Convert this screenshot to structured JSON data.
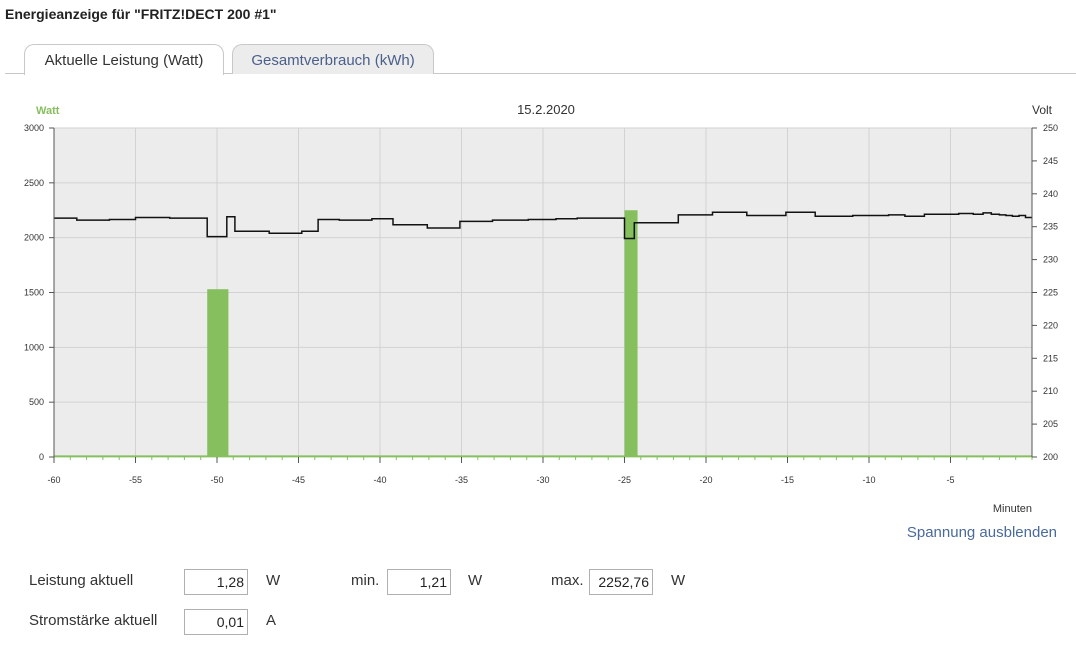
{
  "page": {
    "title": "Energieanzeige für \"FRITZ!DECT 200 #1\""
  },
  "tabs": [
    {
      "label": "Aktuelle Leistung (Watt)",
      "active": true
    },
    {
      "label": "Gesamtverbrauch (kWh)",
      "active": false
    }
  ],
  "colors": {
    "power": "#86bf5e",
    "voltage": "#111111",
    "plot_background": "#ececec",
    "link": "#4a6a9a"
  },
  "chart_data": {
    "type": "bar",
    "title": "15.2.2020",
    "xlabel": "Minuten",
    "ylabel_left": "Watt",
    "ylabel_right": "Volt",
    "xlim": [
      -60,
      0
    ],
    "ylim_left": [
      0,
      3000
    ],
    "ylim_right": [
      200,
      250
    ],
    "x_ticks": [
      -60,
      -55,
      -50,
      -45,
      -40,
      -35,
      -30,
      -25,
      -20,
      -15,
      -10,
      -5
    ],
    "y_ticks_left": [
      0,
      500,
      1000,
      1500,
      2000,
      2500,
      3000
    ],
    "y_ticks_right": [
      200,
      205,
      210,
      215,
      220,
      225,
      230,
      235,
      240,
      245,
      250
    ],
    "grid": true,
    "series": [
      {
        "name": "Watt",
        "axis": "left",
        "kind": "bar",
        "x_start": [
          -50.6,
          -25
        ],
        "x_end": [
          -49.3,
          -24.2
        ],
        "values": [
          1530,
          2250
        ],
        "baseline": 1.3
      },
      {
        "name": "Volt",
        "axis": "right",
        "kind": "step",
        "x": [
          -60,
          -58.6,
          -56.6,
          -55,
          -52.9,
          -50.6,
          -49.4,
          -48.9,
          -47.9,
          -46.8,
          -44.8,
          -43.8,
          -42.5,
          -40.5,
          -39.2,
          -37.1,
          -35.1,
          -33.1,
          -30.9,
          -29.2,
          -27.9,
          -25,
          -24.4,
          -23.6,
          -21.7,
          -20.4,
          -19.6,
          -17.5,
          -16.5,
          -15.1,
          -13.3,
          -12.1,
          -11.0,
          -8.8,
          -7.8,
          -6.6,
          -5.6,
          -4.5,
          -3.6,
          -3.0,
          -2.5,
          -2.0,
          -1.6,
          -1.2,
          -0.8,
          -0.4
        ],
        "values": [
          236.3,
          236.0,
          236.1,
          236.4,
          236.3,
          233.5,
          236.5,
          234.3,
          234.3,
          234.0,
          234.3,
          236.1,
          236.0,
          236.2,
          235.3,
          234.8,
          235.8,
          236.0,
          236.1,
          236.2,
          236.3,
          233.2,
          235.6,
          235.6,
          236.8,
          236.8,
          237.2,
          236.7,
          236.7,
          237.2,
          236.6,
          236.6,
          236.7,
          236.8,
          236.6,
          236.9,
          236.9,
          237.0,
          236.9,
          237.1,
          236.9,
          236.8,
          236.7,
          236.6,
          236.7,
          236.4
        ]
      }
    ]
  },
  "toggle_voltage_label": "Spannung ausblenden",
  "fields": {
    "leistung_label": "Leistung aktuell",
    "leistung_value": "1,28",
    "leistung_unit": "W",
    "min_label": "min.",
    "min_value": "1,21",
    "min_unit": "W",
    "max_label": "max.",
    "max_value": "2252,76",
    "max_unit": "W",
    "strom_label": "Stromstärke aktuell",
    "strom_value": "0,01",
    "strom_unit": "A"
  }
}
